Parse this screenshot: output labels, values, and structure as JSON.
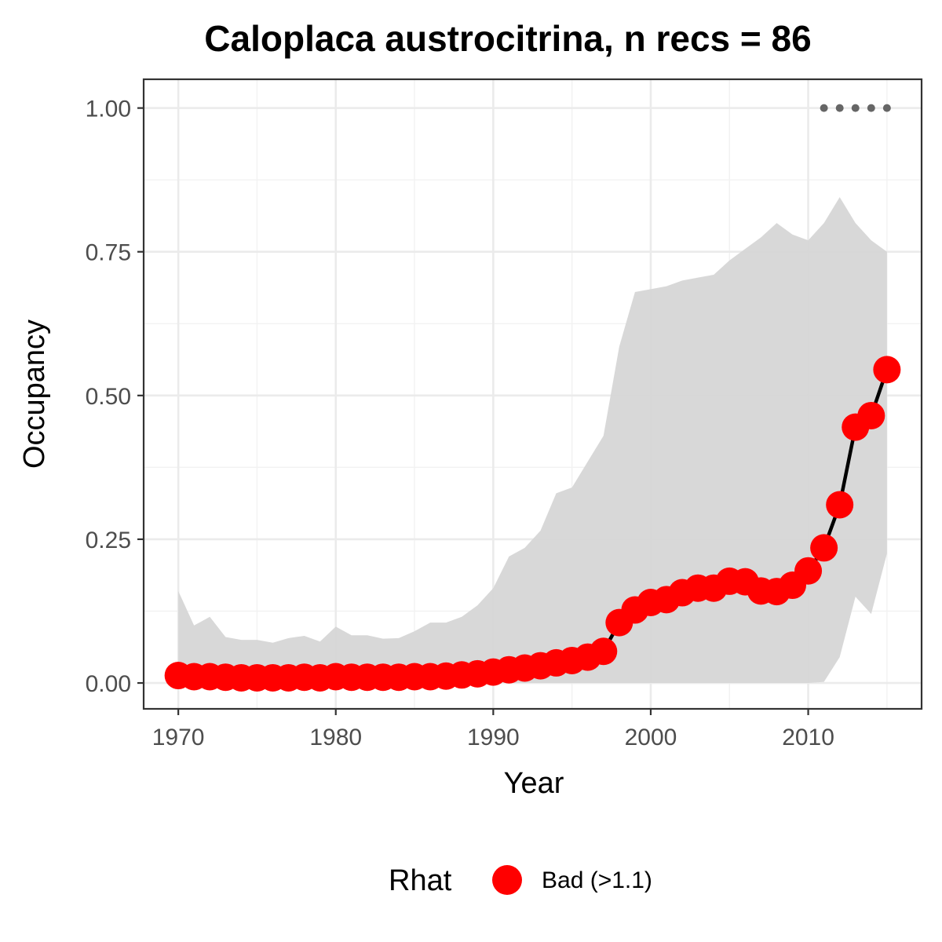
{
  "chart_data": {
    "type": "line",
    "title": "Caloplaca austrocitrina, n recs = 86",
    "xlabel": "Year",
    "ylabel": "Occupancy",
    "xlim": [
      1967.8,
      2017.2
    ],
    "ylim": [
      -0.045,
      1.05
    ],
    "x_ticks": [
      1970,
      1980,
      1990,
      2000,
      2010
    ],
    "x_tick_labels": [
      "1970",
      "1980",
      "1990",
      "2000",
      "2010"
    ],
    "y_ticks": [
      0,
      0.25,
      0.5,
      0.75,
      1.0
    ],
    "y_tick_labels": [
      "0.00",
      "0.25",
      "0.50",
      "0.75",
      "1.00"
    ],
    "grid": true,
    "x": [
      1970,
      1971,
      1972,
      1973,
      1974,
      1975,
      1976,
      1977,
      1978,
      1979,
      1980,
      1981,
      1982,
      1983,
      1984,
      1985,
      1986,
      1987,
      1988,
      1989,
      1990,
      1991,
      1992,
      1993,
      1994,
      1995,
      1996,
      1997,
      1998,
      1999,
      2000,
      2001,
      2002,
      2003,
      2004,
      2005,
      2006,
      2007,
      2008,
      2009,
      2010,
      2011,
      2012,
      2013,
      2014,
      2015
    ],
    "series": [
      {
        "values": [
          0.013,
          0.011,
          0.011,
          0.01,
          0.009,
          0.009,
          0.009,
          0.009,
          0.01,
          0.009,
          0.011,
          0.01,
          0.01,
          0.01,
          0.01,
          0.011,
          0.011,
          0.012,
          0.014,
          0.016,
          0.019,
          0.023,
          0.026,
          0.03,
          0.035,
          0.039,
          0.045,
          0.055,
          0.105,
          0.127,
          0.14,
          0.145,
          0.157,
          0.165,
          0.165,
          0.177,
          0.176,
          0.16,
          0.159,
          0.17,
          0.195,
          0.235,
          0.31,
          0.445,
          0.465,
          0.545
        ],
        "lower": [
          0,
          0,
          0,
          0,
          0,
          0,
          0,
          0,
          0,
          0,
          0,
          0,
          0,
          0,
          0,
          0,
          0,
          0,
          0,
          0,
          0,
          0,
          0,
          0,
          0,
          0,
          0,
          0,
          0,
          0,
          0,
          0,
          0,
          0,
          0,
          0,
          0,
          0,
          0,
          0,
          0,
          0.002,
          0.045,
          0.15,
          0.12,
          0.225
        ],
        "upper": [
          0.16,
          0.1,
          0.115,
          0.08,
          0.075,
          0.075,
          0.07,
          0.078,
          0.082,
          0.072,
          0.098,
          0.083,
          0.083,
          0.077,
          0.078,
          0.09,
          0.105,
          0.105,
          0.115,
          0.135,
          0.165,
          0.22,
          0.235,
          0.265,
          0.33,
          0.34,
          0.385,
          0.43,
          0.585,
          0.68,
          0.685,
          0.69,
          0.7,
          0.705,
          0.71,
          0.735,
          0.755,
          0.775,
          0.8,
          0.78,
          0.77,
          0.8,
          0.845,
          0.8,
          0.77,
          0.75
        ],
        "colors": {
          "line": "#000000",
          "point": "#ff0000",
          "ribbon": "#d6d6d6"
        }
      }
    ],
    "record_years": [
      2011,
      2012,
      2013,
      2014,
      2015
    ],
    "record_y": 1.0,
    "legend": {
      "title": "Rhat",
      "position": "bottom",
      "entries": [
        {
          "label": "Bad (>1.1)",
          "color": "#ff0000"
        }
      ]
    }
  }
}
